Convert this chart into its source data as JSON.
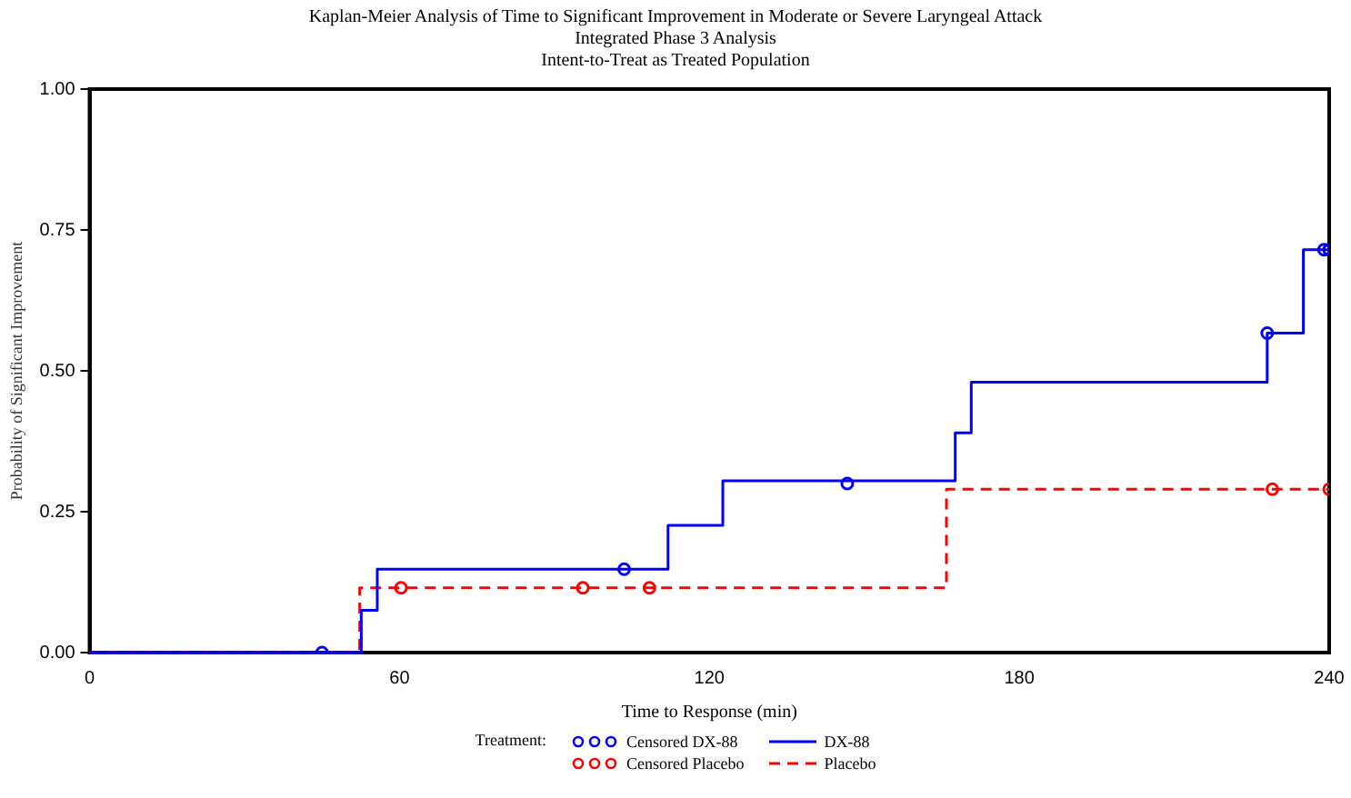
{
  "chart_data": {
    "type": "step",
    "title": "Kaplan-Meier Analysis of Time to Significant Improvement in Moderate or Severe Laryngeal Attack",
    "subtitle": "Integrated Phase 3 Analysis\nIntent-to-Treat as Treated Population",
    "xlabel": "Time to Response (min)",
    "ylabel": "Probability of Significant Improvement",
    "legend_title": "Treatment:",
    "legend": "bottom",
    "grid": false,
    "xlim": [
      0,
      240
    ],
    "xticks": [
      0,
      60,
      120,
      180,
      240
    ],
    "ylim": [
      0,
      1
    ],
    "yticks": [
      {
        "value": 0,
        "label": "0.00"
      },
      {
        "value": 0.25,
        "label": "0.25"
      },
      {
        "value": 0.5,
        "label": "0.50"
      },
      {
        "value": 0.75,
        "label": "0.75"
      },
      {
        "value": 1,
        "label": "1.00"
      }
    ],
    "series": [
      {
        "name": "Censored DX-88",
        "type": "scatter",
        "marker": "circle",
        "color": "#0000ff",
        "x": [
          45,
          103.5,
          146.7,
          228,
          239,
          240
        ],
        "values": [
          0,
          0.148,
          0.3,
          0.567,
          0.715,
          0.715
        ]
      },
      {
        "name": "Censored Placebo",
        "type": "scatter",
        "marker": "circle",
        "color": "#ff0000",
        "x": [
          60.3,
          95.5,
          108.4,
          229,
          240
        ],
        "values": [
          0.115,
          0.115,
          0.115,
          0.29,
          0.29
        ]
      },
      {
        "name": "DX-88",
        "type": "step",
        "line_style": "solid",
        "color": "#0000ff",
        "x": [
          0,
          52.6,
          55.7,
          112,
          122.6,
          167.6,
          170.7,
          228,
          235,
          240
        ],
        "values": [
          0,
          0.075,
          0.148,
          0.226,
          0.305,
          0.39,
          0.48,
          0.567,
          0.715,
          0.715
        ]
      },
      {
        "name": "Placebo",
        "type": "step",
        "line_style": "dashed",
        "color": "#ff0000",
        "x": [
          0,
          52.3,
          165.9,
          240
        ],
        "values": [
          0,
          0.115,
          0.29,
          0.29
        ]
      }
    ]
  }
}
